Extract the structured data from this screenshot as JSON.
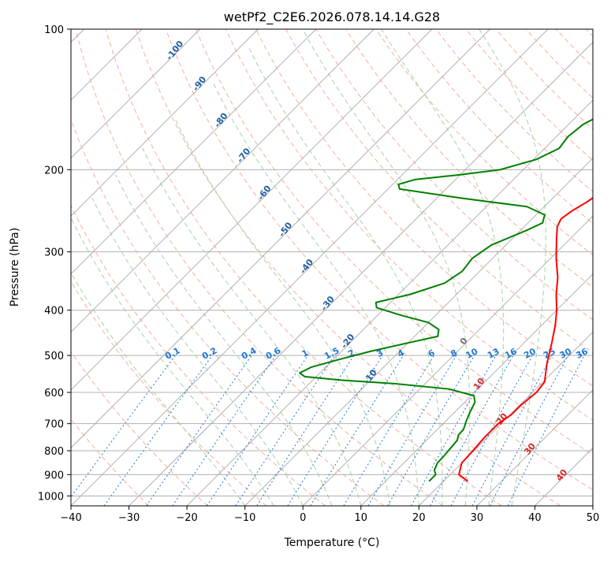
{
  "chart_data": {
    "type": "line",
    "title": "wetPf2_C2E6.2026.078.14.14.G28",
    "xlabel": "Temperature (°C)",
    "ylabel": "Pressure (hPa)",
    "xlim": [
      -40,
      50
    ],
    "ylim": [
      1050,
      100
    ],
    "x_ticks": [
      -40,
      -30,
      -20,
      -10,
      0,
      10,
      20,
      30,
      40,
      50
    ],
    "y_ticks": [
      1000,
      900,
      800,
      700,
      600,
      500,
      400,
      300,
      200,
      100
    ],
    "temperature": {
      "name": "Temperature",
      "color": "#ff0000",
      "p": [
        930,
        900,
        850,
        800,
        750,
        700,
        670,
        640,
        600,
        570,
        520,
        470,
        430,
        400,
        370,
        340,
        310,
        280,
        265,
        255,
        245,
        235,
        225,
        210,
        190,
        170,
        150,
        130,
        115,
        100
      ],
      "t": [
        24.2,
        21.5,
        20,
        19.8,
        19.5,
        19.5,
        20.2,
        20.2,
        20.7,
        20.3,
        17.5,
        14.8,
        12.3,
        10,
        7.2,
        4.5,
        1,
        -2.5,
        -4.3,
        -5,
        -4.5,
        -3.5,
        -2.8,
        -2.2,
        -4,
        -7,
        -10.2,
        -14.2,
        -18.5,
        -24
      ]
    },
    "dewpoint": {
      "name": "Dew point",
      "color": "#008000",
      "p": [
        930,
        900,
        880,
        850,
        820,
        790,
        760,
        740,
        720,
        690,
        660,
        630,
        610,
        590,
        575,
        565,
        555,
        545,
        530,
        510,
        490,
        470,
        455,
        440,
        425,
        410,
        395,
        385,
        370,
        350,
        330,
        310,
        290,
        270,
        260,
        250,
        240,
        230,
        220,
        215,
        210,
        205,
        200,
        190,
        180,
        170,
        160,
        150,
        135,
        120,
        110,
        100
      ],
      "td": [
        17.5,
        17.5,
        16.5,
        15.8,
        15.7,
        15.5,
        15.3,
        14.6,
        14.5,
        13.5,
        12.6,
        11.8,
        10.5,
        5,
        -5,
        -15,
        -22,
        -23.5,
        -22.5,
        -19,
        -15,
        -10,
        -6,
        -7,
        -10,
        -16,
        -21.5,
        -22.5,
        -18,
        -14,
        -13,
        -13.5,
        -12.5,
        -9,
        -7.5,
        -8.5,
        -13,
        -26,
        -38,
        -39,
        -37,
        -30,
        -24,
        -19.5,
        -17.5,
        -18,
        -17.5,
        -15.5,
        -12,
        -9.5,
        -7.5,
        -4.5
      ]
    },
    "dry_adiabat_labels": [
      "-100",
      "-90",
      "-80",
      "-70",
      "-60",
      "-50",
      "-40",
      "-30",
      "-20",
      "-10",
      "0",
      "10",
      "20",
      "30",
      "40"
    ],
    "mixing_ratio_labels": [
      "0.1",
      "0.2",
      "0.4",
      "0.6",
      "1",
      "1.5",
      "2",
      "3",
      "4",
      "6",
      "8",
      "10",
      "13",
      "16",
      "20",
      "25",
      "30",
      "36"
    ],
    "colors": {
      "frame": "#000000",
      "grid": "#b0b0b0",
      "skewed_isotherm": "#a9a9a9",
      "dry_adiabat": "#f5a08c",
      "moist_adiabat": "#9acd9a",
      "mixing_ratio": "#1f77d4",
      "adiabat_label_blue": "#1f5fa0",
      "adiabat_label_gray": "#707070",
      "adiabat_label_red": "#d62728"
    }
  }
}
